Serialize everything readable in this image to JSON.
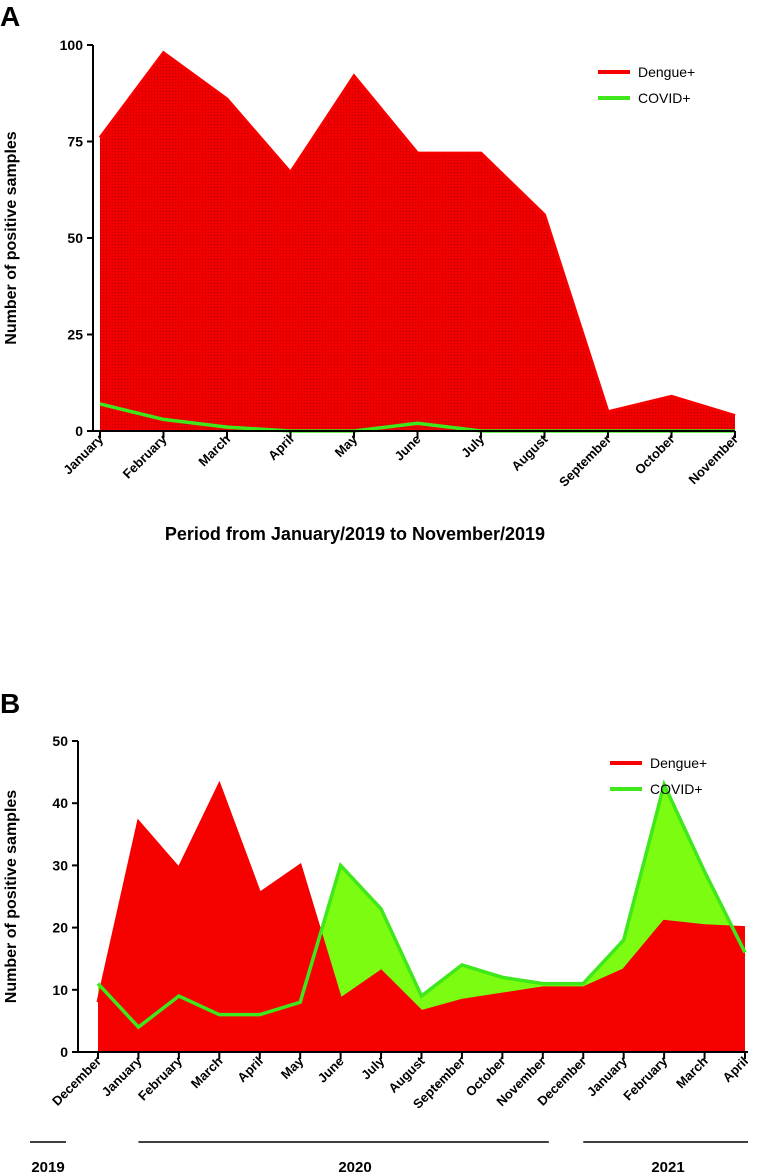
{
  "colors": {
    "dengue": "#f70000",
    "covid": "#7cfc10",
    "covid_line": "#3ee81a",
    "axis": "#000000"
  },
  "chart_data": [
    {
      "panel": "A",
      "type": "area",
      "xlabel": "Period from January/2019 to November/2019",
      "ylabel": "Number of positive samples",
      "ylim": [
        0,
        100
      ],
      "yticks": [
        0,
        25,
        50,
        75,
        100
      ],
      "categories": [
        "January",
        "February",
        "March",
        "April",
        "May",
        "June",
        "July",
        "August",
        "September",
        "October",
        "November"
      ],
      "series": [
        {
          "name": "Dengue+",
          "values": [
            76,
            98,
            86,
            67,
            92,
            72,
            72,
            56,
            5,
            9,
            4
          ]
        },
        {
          "name": "COVID+",
          "values": [
            7,
            3,
            1,
            0,
            0,
            2,
            0,
            0,
            0,
            0,
            0
          ]
        }
      ],
      "legend": "top-right",
      "grid": false
    },
    {
      "panel": "B",
      "type": "area",
      "xlabel": "",
      "ylabel": "Number of positive samples",
      "ylim": [
        0,
        50
      ],
      "yticks": [
        0,
        10,
        20,
        30,
        40,
        50
      ],
      "categories": [
        "December",
        "January",
        "February",
        "March",
        "April",
        "May",
        "June",
        "July",
        "August",
        "September",
        "October",
        "November",
        "December",
        "January",
        "February",
        "March",
        "April"
      ],
      "year_groups": [
        {
          "label": "2019",
          "from": 0,
          "to": 0
        },
        {
          "label": "2020",
          "from": 1,
          "to": 11
        },
        {
          "label": "2021",
          "from": 12,
          "to": 16
        }
      ],
      "series": [
        {
          "name": "Dengue+",
          "values": [
            8,
            37,
            29.5,
            43,
            25.5,
            30,
            8.5,
            13,
            6.5,
            8.3,
            9.3,
            10.3,
            10.3,
            13.2,
            21,
            20.3,
            20
          ]
        },
        {
          "name": "COVID+",
          "values": [
            11,
            4,
            9,
            6,
            6,
            8,
            30,
            23,
            9,
            14,
            12,
            11,
            11,
            18,
            43,
            29,
            16
          ]
        }
      ],
      "legend": "top-right",
      "grid": false
    }
  ]
}
